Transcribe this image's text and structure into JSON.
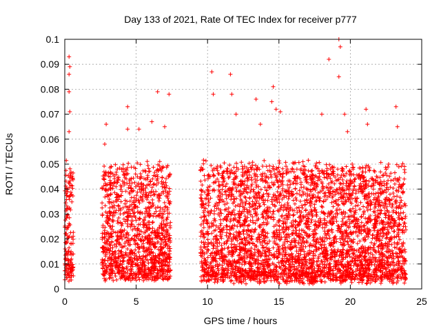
{
  "chart_data": {
    "type": "scatter",
    "title": "Day 133 of 2021, Rate Of TEC Index for receiver p777",
    "xlabel": "GPS time / hours",
    "ylabel": "ROTI / TECUs",
    "xlim": [
      0,
      25
    ],
    "ylim": [
      0,
      0.1
    ],
    "x_ticks": [
      "0",
      "5",
      "10",
      "15",
      "20",
      "25"
    ],
    "y_ticks": [
      "0",
      "0.01",
      "0.02",
      "0.03",
      "0.04",
      "0.05",
      "0.06",
      "0.07",
      "0.08",
      "0.09",
      "0.1"
    ],
    "grid": true,
    "marker": "plus",
    "color": "#ff0000",
    "data_segments": [
      {
        "x_start": 0.0,
        "x_end": 0.6,
        "y_low": 0.005,
        "y_high": 0.05
      },
      {
        "x_start": 2.6,
        "x_end": 7.4,
        "y_low": 0.005,
        "y_high": 0.05
      },
      {
        "x_start": 9.5,
        "x_end": 23.9,
        "y_low": 0.004,
        "y_high": 0.05
      }
    ],
    "notable_points": [
      {
        "x": 0.3,
        "y": 0.093
      },
      {
        "x": 0.35,
        "y": 0.089
      },
      {
        "x": 0.3,
        "y": 0.086
      },
      {
        "x": 0.3,
        "y": 0.079
      },
      {
        "x": 0.35,
        "y": 0.071
      },
      {
        "x": 0.3,
        "y": 0.063
      },
      {
        "x": 2.9,
        "y": 0.066
      },
      {
        "x": 2.8,
        "y": 0.058
      },
      {
        "x": 4.4,
        "y": 0.073
      },
      {
        "x": 4.4,
        "y": 0.064
      },
      {
        "x": 5.2,
        "y": 0.064
      },
      {
        "x": 6.1,
        "y": 0.067
      },
      {
        "x": 6.5,
        "y": 0.079
      },
      {
        "x": 7.0,
        "y": 0.065
      },
      {
        "x": 7.3,
        "y": 0.078
      },
      {
        "x": 10.3,
        "y": 0.087
      },
      {
        "x": 10.4,
        "y": 0.078
      },
      {
        "x": 11.6,
        "y": 0.086
      },
      {
        "x": 11.7,
        "y": 0.078
      },
      {
        "x": 12.0,
        "y": 0.07
      },
      {
        "x": 13.4,
        "y": 0.076
      },
      {
        "x": 13.7,
        "y": 0.066
      },
      {
        "x": 14.6,
        "y": 0.081
      },
      {
        "x": 14.5,
        "y": 0.075
      },
      {
        "x": 14.8,
        "y": 0.072
      },
      {
        "x": 15.1,
        "y": 0.071
      },
      {
        "x": 18.0,
        "y": 0.07
      },
      {
        "x": 18.5,
        "y": 0.092
      },
      {
        "x": 19.2,
        "y": 0.1
      },
      {
        "x": 19.3,
        "y": 0.097
      },
      {
        "x": 19.2,
        "y": 0.085
      },
      {
        "x": 19.6,
        "y": 0.07
      },
      {
        "x": 19.8,
        "y": 0.063
      },
      {
        "x": 21.1,
        "y": 0.072
      },
      {
        "x": 21.2,
        "y": 0.066
      },
      {
        "x": 23.2,
        "y": 0.073
      },
      {
        "x": 23.3,
        "y": 0.065
      }
    ]
  }
}
